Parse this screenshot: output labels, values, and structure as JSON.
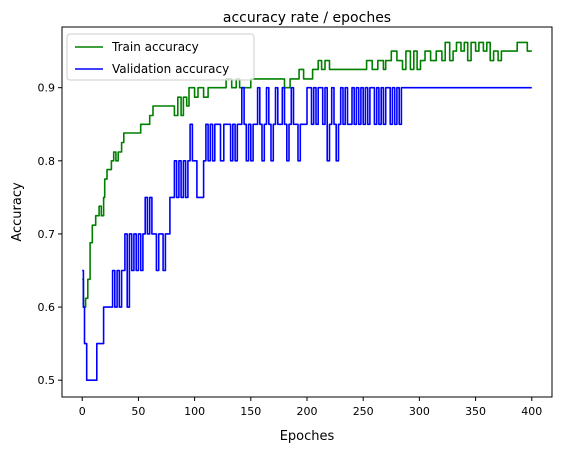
{
  "chart_data": {
    "type": "line",
    "title": "accuracy rate / epoches",
    "xlabel": "Epoches",
    "ylabel": "Accuracy",
    "xlim": [
      -18,
      418
    ],
    "ylim": [
      0.477,
      0.983
    ],
    "xticks": [
      0,
      50,
      100,
      150,
      200,
      250,
      300,
      350,
      400
    ],
    "yticks": [
      0.5,
      0.6,
      0.7,
      0.8,
      0.9
    ],
    "ytick_labels": [
      "0.5",
      "0.6",
      "0.7",
      "0.8",
      "0.9"
    ],
    "grid": false,
    "legend_position": "top-left",
    "series": [
      {
        "name": "Train accuracy",
        "color": "#008000",
        "points": [
          [
            0,
            0.638
          ],
          [
            1,
            0.6
          ],
          [
            3,
            0.612
          ],
          [
            5,
            0.638
          ],
          [
            7,
            0.688
          ],
          [
            9,
            0.712
          ],
          [
            12,
            0.725
          ],
          [
            15,
            0.738
          ],
          [
            17,
            0.725
          ],
          [
            19,
            0.75
          ],
          [
            20,
            0.775
          ],
          [
            22,
            0.788
          ],
          [
            24,
            0.788
          ],
          [
            26,
            0.8
          ],
          [
            28,
            0.812
          ],
          [
            30,
            0.8
          ],
          [
            32,
            0.812
          ],
          [
            35,
            0.825
          ],
          [
            37,
            0.838
          ],
          [
            45,
            0.838
          ],
          [
            50,
            0.838
          ],
          [
            52,
            0.85
          ],
          [
            57,
            0.85
          ],
          [
            60,
            0.862
          ],
          [
            63,
            0.875
          ],
          [
            70,
            0.875
          ],
          [
            80,
            0.875
          ],
          [
            82,
            0.862
          ],
          [
            85,
            0.887
          ],
          [
            88,
            0.862
          ],
          [
            90,
            0.887
          ],
          [
            93,
            0.875
          ],
          [
            95,
            0.9
          ],
          [
            100,
            0.887
          ],
          [
            103,
            0.9
          ],
          [
            108,
            0.887
          ],
          [
            112,
            0.9
          ],
          [
            125,
            0.9
          ],
          [
            128,
            0.912
          ],
          [
            133,
            0.9
          ],
          [
            137,
            0.912
          ],
          [
            140,
            0.9
          ],
          [
            145,
            0.9
          ],
          [
            150,
            0.912
          ],
          [
            160,
            0.912
          ],
          [
            170,
            0.912
          ],
          [
            177,
            0.912
          ],
          [
            180,
            0.9
          ],
          [
            185,
            0.912
          ],
          [
            190,
            0.912
          ],
          [
            193,
            0.925
          ],
          [
            197,
            0.912
          ],
          [
            200,
            0.912
          ],
          [
            205,
            0.925
          ],
          [
            210,
            0.937
          ],
          [
            213,
            0.925
          ],
          [
            216,
            0.937
          ],
          [
            220,
            0.925
          ],
          [
            225,
            0.925
          ],
          [
            232,
            0.925
          ],
          [
            240,
            0.925
          ],
          [
            250,
            0.925
          ],
          [
            253,
            0.937
          ],
          [
            258,
            0.925
          ],
          [
            263,
            0.937
          ],
          [
            268,
            0.925
          ],
          [
            270,
            0.937
          ],
          [
            275,
            0.95
          ],
          [
            280,
            0.937
          ],
          [
            285,
            0.925
          ],
          [
            288,
            0.95
          ],
          [
            292,
            0.925
          ],
          [
            295,
            0.95
          ],
          [
            298,
            0.925
          ],
          [
            301,
            0.937
          ],
          [
            305,
            0.95
          ],
          [
            310,
            0.937
          ],
          [
            315,
            0.95
          ],
          [
            320,
            0.937
          ],
          [
            323,
            0.962
          ],
          [
            327,
            0.937
          ],
          [
            330,
            0.95
          ],
          [
            333,
            0.962
          ],
          [
            337,
            0.95
          ],
          [
            340,
            0.962
          ],
          [
            343,
            0.937
          ],
          [
            346,
            0.962
          ],
          [
            350,
            0.95
          ],
          [
            353,
            0.962
          ],
          [
            357,
            0.95
          ],
          [
            360,
            0.962
          ],
          [
            363,
            0.937
          ],
          [
            366,
            0.95
          ],
          [
            370,
            0.937
          ],
          [
            373,
            0.95
          ],
          [
            377,
            0.95
          ],
          [
            383,
            0.95
          ],
          [
            387,
            0.962
          ],
          [
            392,
            0.962
          ],
          [
            396,
            0.95
          ],
          [
            400,
            0.95
          ]
        ]
      },
      {
        "name": "Validation accuracy",
        "color": "#0000ff",
        "points": [
          [
            0,
            0.65
          ],
          [
            1,
            0.6
          ],
          [
            2,
            0.55
          ],
          [
            4,
            0.5
          ],
          [
            12,
            0.5
          ],
          [
            13,
            0.55
          ],
          [
            18,
            0.55
          ],
          [
            19,
            0.6
          ],
          [
            25,
            0.6
          ],
          [
            27,
            0.65
          ],
          [
            29,
            0.6
          ],
          [
            31,
            0.65
          ],
          [
            33,
            0.6
          ],
          [
            35,
            0.65
          ],
          [
            37,
            0.65
          ],
          [
            38,
            0.7
          ],
          [
            40,
            0.6
          ],
          [
            42,
            0.7
          ],
          [
            44,
            0.65
          ],
          [
            46,
            0.7
          ],
          [
            48,
            0.65
          ],
          [
            50,
            0.7
          ],
          [
            52,
            0.65
          ],
          [
            54,
            0.7
          ],
          [
            56,
            0.75
          ],
          [
            58,
            0.7
          ],
          [
            60,
            0.75
          ],
          [
            62,
            0.7
          ],
          [
            64,
            0.7
          ],
          [
            66,
            0.65
          ],
          [
            68,
            0.7
          ],
          [
            70,
            0.7
          ],
          [
            72,
            0.65
          ],
          [
            74,
            0.7
          ],
          [
            76,
            0.7
          ],
          [
            78,
            0.75
          ],
          [
            80,
            0.75
          ],
          [
            82,
            0.8
          ],
          [
            84,
            0.75
          ],
          [
            86,
            0.8
          ],
          [
            88,
            0.75
          ],
          [
            90,
            0.8
          ],
          [
            92,
            0.75
          ],
          [
            94,
            0.8
          ],
          [
            96,
            0.85
          ],
          [
            98,
            0.8
          ],
          [
            100,
            0.8
          ],
          [
            102,
            0.75
          ],
          [
            105,
            0.75
          ],
          [
            108,
            0.8
          ],
          [
            110,
            0.85
          ],
          [
            112,
            0.8
          ],
          [
            114,
            0.85
          ],
          [
            116,
            0.8
          ],
          [
            118,
            0.85
          ],
          [
            120,
            0.85
          ],
          [
            123,
            0.8
          ],
          [
            126,
            0.85
          ],
          [
            130,
            0.85
          ],
          [
            132,
            0.8
          ],
          [
            134,
            0.85
          ],
          [
            136,
            0.8
          ],
          [
            138,
            0.85
          ],
          [
            140,
            0.85
          ],
          [
            142,
            0.9
          ],
          [
            144,
            0.85
          ],
          [
            146,
            0.8
          ],
          [
            148,
            0.85
          ],
          [
            150,
            0.8
          ],
          [
            152,
            0.85
          ],
          [
            154,
            0.85
          ],
          [
            156,
            0.9
          ],
          [
            158,
            0.85
          ],
          [
            160,
            0.8
          ],
          [
            162,
            0.85
          ],
          [
            164,
            0.9
          ],
          [
            166,
            0.85
          ],
          [
            168,
            0.8
          ],
          [
            170,
            0.85
          ],
          [
            172,
            0.9
          ],
          [
            174,
            0.85
          ],
          [
            176,
            0.85
          ],
          [
            178,
            0.9
          ],
          [
            180,
            0.85
          ],
          [
            182,
            0.8
          ],
          [
            184,
            0.85
          ],
          [
            186,
            0.9
          ],
          [
            188,
            0.85
          ],
          [
            190,
            0.85
          ],
          [
            192,
            0.8
          ],
          [
            194,
            0.85
          ],
          [
            196,
            0.85
          ],
          [
            198,
            0.85
          ],
          [
            200,
            0.9
          ],
          [
            202,
            0.9
          ],
          [
            204,
            0.85
          ],
          [
            206,
            0.9
          ],
          [
            208,
            0.85
          ],
          [
            210,
            0.9
          ],
          [
            212,
            0.9
          ],
          [
            214,
            0.85
          ],
          [
            216,
            0.9
          ],
          [
            218,
            0.8
          ],
          [
            220,
            0.85
          ],
          [
            222,
            0.9
          ],
          [
            224,
            0.85
          ],
          [
            226,
            0.8
          ],
          [
            228,
            0.85
          ],
          [
            230,
            0.9
          ],
          [
            232,
            0.85
          ],
          [
            234,
            0.9
          ],
          [
            236,
            0.85
          ],
          [
            238,
            0.85
          ],
          [
            240,
            0.9
          ],
          [
            242,
            0.85
          ],
          [
            244,
            0.9
          ],
          [
            246,
            0.85
          ],
          [
            248,
            0.9
          ],
          [
            250,
            0.85
          ],
          [
            252,
            0.9
          ],
          [
            254,
            0.85
          ],
          [
            256,
            0.9
          ],
          [
            258,
            0.9
          ],
          [
            260,
            0.85
          ],
          [
            262,
            0.9
          ],
          [
            264,
            0.85
          ],
          [
            266,
            0.9
          ],
          [
            268,
            0.85
          ],
          [
            270,
            0.9
          ],
          [
            272,
            0.9
          ],
          [
            274,
            0.85
          ],
          [
            276,
            0.9
          ],
          [
            278,
            0.85
          ],
          [
            280,
            0.9
          ],
          [
            282,
            0.85
          ],
          [
            284,
            0.9
          ],
          [
            290,
            0.9
          ],
          [
            300,
            0.9
          ],
          [
            350,
            0.9
          ],
          [
            400,
            0.9
          ]
        ]
      }
    ]
  }
}
